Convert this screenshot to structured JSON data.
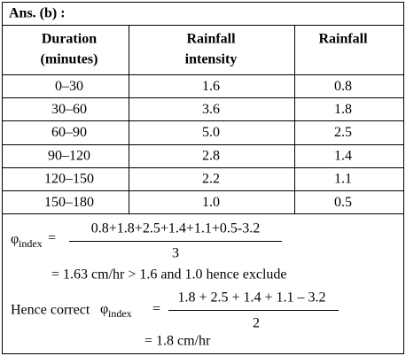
{
  "header": {
    "title": "Ans. (b) :"
  },
  "table": {
    "columns": [
      [
        "Duration",
        "(minutes)"
      ],
      [
        "Rainfall",
        "intensity"
      ],
      [
        "Rainfall"
      ]
    ],
    "rows": [
      [
        "0–30",
        "1.6",
        "0.8"
      ],
      [
        "30–60",
        "3.6",
        "1.8"
      ],
      [
        "60–90",
        "5.0",
        "2.5"
      ],
      [
        "90–120",
        "2.8",
        "1.4"
      ],
      [
        "120–150",
        "2.2",
        "1.1"
      ],
      [
        "150–180",
        "1.0",
        "0.5"
      ]
    ]
  },
  "solution": {
    "symbol": "φ",
    "subscript": "index",
    "equals": "=",
    "numerator1": "0.8+1.8+2.5+1.4+1.1+0.5-3.2",
    "denominator1": "3",
    "result1": "= 1.63 cm/hr > 1.6 and 1.0 hence exclude",
    "prefix2": "Hence correct",
    "numerator2": "1.8 + 2.5 + 1.4 + 1.1 – 3.2",
    "denominator2": "2",
    "result2": "= 1.8 cm/hr"
  }
}
